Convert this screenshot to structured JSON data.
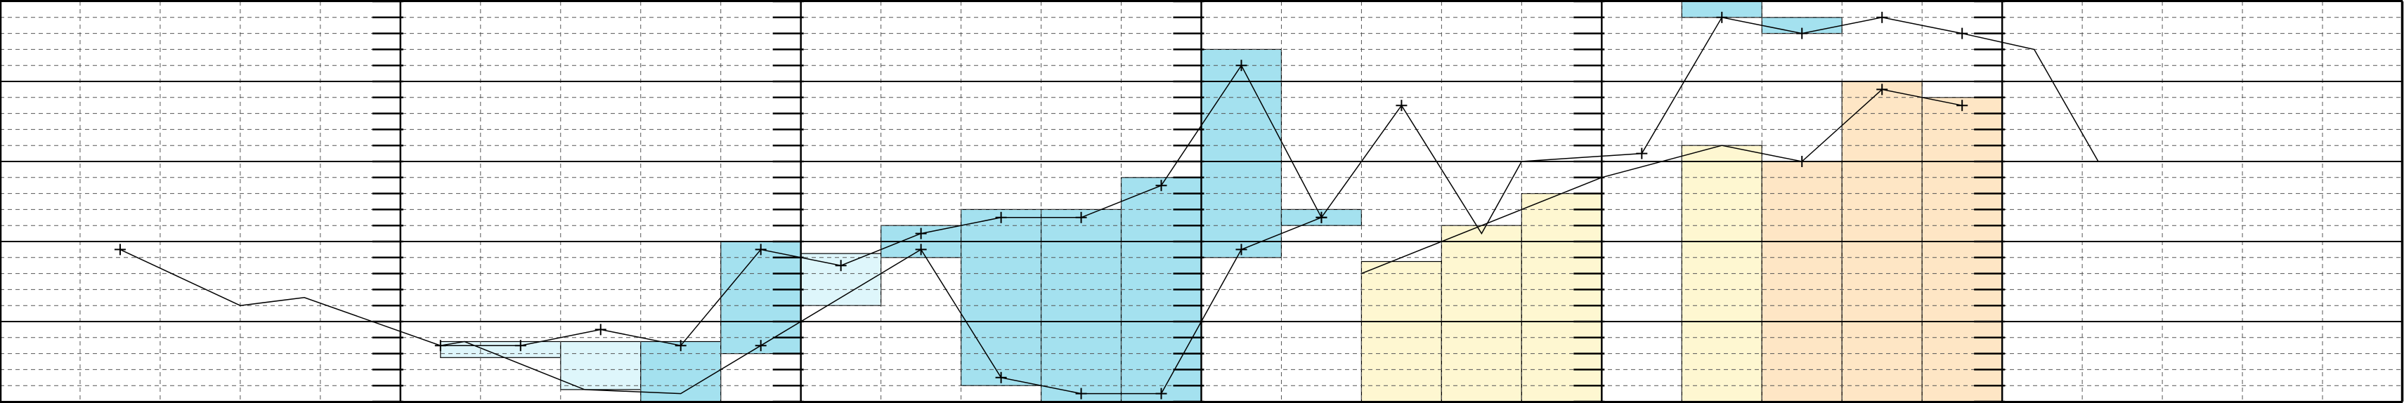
{
  "chart_data": {
    "type": "line",
    "title": "",
    "xlabel": "",
    "ylabel": "",
    "xlim": [
      0,
      30
    ],
    "ylim": [
      0,
      5
    ],
    "grid": true,
    "legend": "none",
    "colors": {
      "cyan_fill": "#a4e1ef",
      "cyan_light_fill": "#def6fb",
      "yellow_fill": "#fef7d1",
      "orange_fill": "#fee6c5",
      "line": "#000000",
      "grid_major": "#000000",
      "grid_minor": "#555555"
    },
    "regions": [
      {
        "color": "cyan_light",
        "x": [
          5.5,
          7
        ],
        "y": [
          0.55,
          0.75
        ]
      },
      {
        "color": "cyan_light",
        "x": [
          7,
          8
        ],
        "y": [
          0.15,
          0.75
        ]
      },
      {
        "color": "cyan",
        "x": [
          8,
          9
        ],
        "y": [
          0,
          0.75
        ]
      },
      {
        "color": "cyan",
        "x": [
          9,
          10
        ],
        "y": [
          0.6,
          2
        ]
      },
      {
        "color": "cyan_light",
        "x": [
          10,
          11
        ],
        "y": [
          1.2,
          1.85
        ]
      },
      {
        "color": "cyan",
        "x": [
          11,
          12
        ],
        "y": [
          1.8,
          2.2
        ]
      },
      {
        "color": "cyan",
        "x": [
          12,
          13
        ],
        "y": [
          0.2,
          2.4
        ]
      },
      {
        "color": "cyan",
        "x": [
          13,
          14
        ],
        "y": [
          0,
          2.4
        ]
      },
      {
        "color": "cyan",
        "x": [
          14,
          15
        ],
        "y": [
          0,
          2.8
        ]
      },
      {
        "color": "cyan",
        "x": [
          15,
          16
        ],
        "y": [
          1.8,
          4.4
        ]
      },
      {
        "color": "cyan",
        "x": [
          16,
          17
        ],
        "y": [
          2.2,
          2.4
        ]
      },
      {
        "color": "yellow",
        "x": [
          17,
          18
        ],
        "y": [
          0,
          1.75
        ]
      },
      {
        "color": "yellow",
        "x": [
          18,
          19
        ],
        "y": [
          0,
          2.2
        ]
      },
      {
        "color": "yellow",
        "x": [
          19,
          20
        ],
        "y": [
          0,
          2.6
        ]
      },
      {
        "color": "yellow",
        "x": [
          21,
          22
        ],
        "y": [
          0,
          3.2
        ]
      },
      {
        "color": "cyan",
        "x": [
          21,
          22
        ],
        "y": [
          4.8,
          5
        ]
      },
      {
        "color": "orange",
        "x": [
          22,
          23
        ],
        "y": [
          0,
          3
        ]
      },
      {
        "color": "cyan",
        "x": [
          22,
          23
        ],
        "y": [
          4.6,
          4.8
        ]
      },
      {
        "color": "orange",
        "x": [
          23,
          24
        ],
        "y": [
          0,
          4
        ]
      },
      {
        "color": "orange",
        "x": [
          24,
          25
        ],
        "y": [
          0,
          3.8
        ]
      }
    ],
    "series": [
      {
        "points": [
          [
            1.5,
            1.9
          ],
          [
            3,
            1.2
          ],
          [
            3.8,
            1.3
          ],
          [
            5.5,
            0.7
          ],
          [
            5.8,
            0.75
          ],
          [
            7.3,
            0.15
          ],
          [
            8.5,
            0.1
          ],
          [
            9.5,
            0.7
          ],
          [
            11.5,
            1.9
          ],
          [
            12.5,
            0.3
          ],
          [
            13.5,
            0.1
          ],
          [
            14.5,
            0.1
          ],
          [
            15.5,
            1.9
          ],
          [
            16.5,
            2.3
          ],
          [
            17.5,
            3.7
          ],
          [
            18.5,
            2.1
          ],
          [
            19,
            3
          ],
          [
            20.5,
            3.1
          ],
          [
            21.5,
            4.8
          ],
          [
            22.5,
            4.6
          ],
          [
            23.5,
            4.8
          ],
          [
            24.5,
            4.6
          ],
          [
            25.4,
            4.4
          ],
          [
            26.2,
            3
          ]
        ],
        "markers": [
          [
            1.5,
            1.9
          ],
          [
            9.5,
            0.7
          ],
          [
            11.5,
            1.9
          ],
          [
            12.5,
            0.3
          ],
          [
            13.5,
            0.1
          ],
          [
            14.5,
            0.1
          ],
          [
            15.5,
            1.9
          ],
          [
            16.5,
            2.3
          ],
          [
            17.5,
            3.7
          ],
          [
            20.5,
            3.1
          ],
          [
            21.5,
            4.8
          ],
          [
            22.5,
            4.6
          ],
          [
            23.5,
            4.8
          ],
          [
            24.5,
            4.6
          ]
        ]
      },
      {
        "points": [
          [
            5.5,
            0.7
          ],
          [
            6.5,
            0.7
          ],
          [
            7.5,
            0.9
          ],
          [
            8.5,
            0.7
          ],
          [
            9.5,
            1.9
          ],
          [
            10.5,
            1.7
          ],
          [
            11.5,
            2.1
          ],
          [
            12.5,
            2.3
          ],
          [
            13.5,
            2.3
          ],
          [
            14.5,
            2.7
          ],
          [
            15.5,
            4.2
          ],
          [
            16.5,
            2.3
          ]
        ],
        "markers": [
          [
            5.5,
            0.7
          ],
          [
            6.5,
            0.7
          ],
          [
            7.5,
            0.9
          ],
          [
            8.5,
            0.7
          ],
          [
            9.5,
            1.9
          ],
          [
            10.5,
            1.7
          ],
          [
            11.5,
            2.1
          ],
          [
            12.5,
            2.3
          ],
          [
            13.5,
            2.3
          ],
          [
            14.5,
            2.7
          ],
          [
            15.5,
            4.2
          ],
          [
            16.5,
            2.3
          ]
        ]
      },
      {
        "points": [
          [
            17,
            1.6
          ],
          [
            20,
            2.8
          ],
          [
            21.5,
            3.2
          ],
          [
            22.5,
            3
          ],
          [
            23.5,
            3.9
          ],
          [
            24.5,
            3.7
          ]
        ],
        "markers": [
          [
            22.5,
            3
          ],
          [
            23.5,
            3.9
          ],
          [
            24.5,
            3.7
          ]
        ]
      }
    ]
  }
}
